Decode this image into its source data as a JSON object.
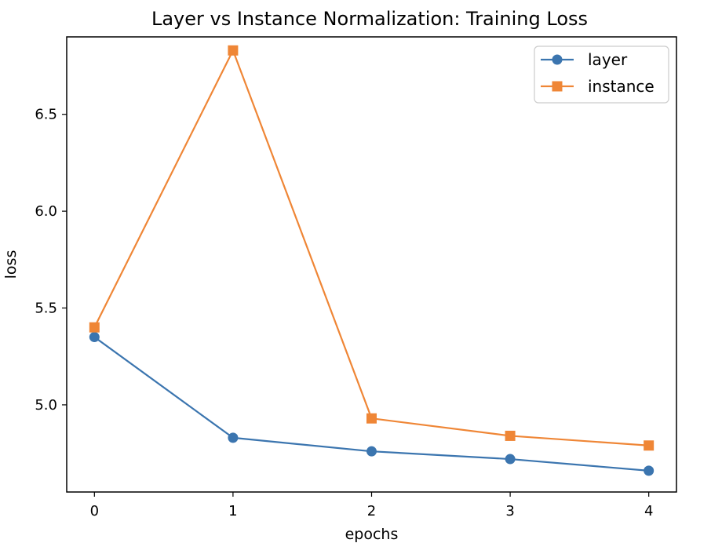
{
  "chart_data": {
    "type": "line",
    "title": "Layer vs Instance Normalization: Training Loss",
    "xlabel": "epochs",
    "ylabel": "loss",
    "x": [
      0,
      1,
      2,
      3,
      4
    ],
    "xticks": [
      "0",
      "1",
      "2",
      "3",
      "4"
    ],
    "yticks": [
      "5.0",
      "5.5",
      "6.0",
      "6.5"
    ],
    "xlim": [
      -0.2,
      4.2
    ],
    "ylim": [
      4.55,
      6.9
    ],
    "grid": false,
    "legend_position": "top-right",
    "series": [
      {
        "name": "layer",
        "values": [
          5.35,
          4.83,
          4.76,
          4.72,
          4.66
        ],
        "color": "#3b75af",
        "marker": "circle"
      },
      {
        "name": "instance",
        "values": [
          5.4,
          6.83,
          4.93,
          4.84,
          4.79
        ],
        "color": "#ef8636",
        "marker": "square"
      }
    ]
  }
}
